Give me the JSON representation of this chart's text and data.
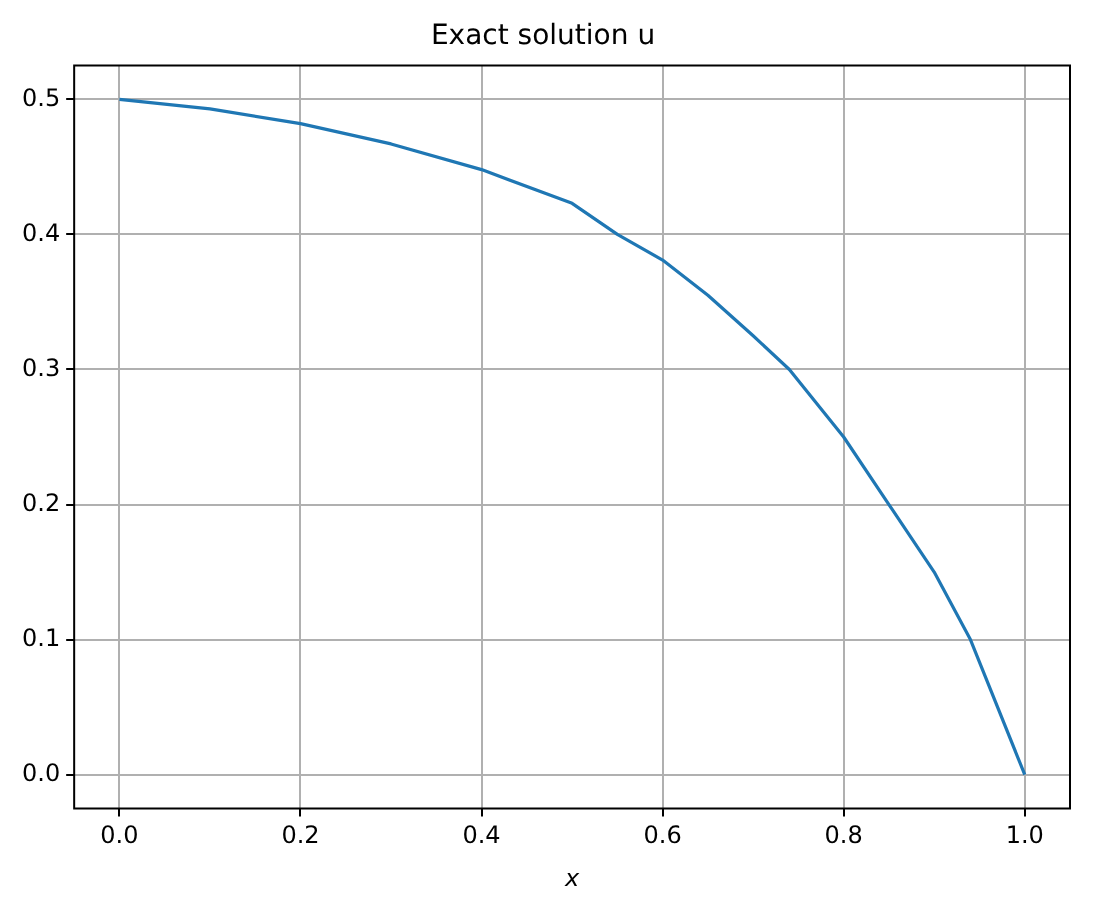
{
  "chart_data": {
    "type": "line",
    "title": "Exact solution u",
    "xlabel": "x",
    "x": [
      0,
      0.1,
      0.2,
      0.3,
      0.4,
      0.5,
      0.55,
      0.6,
      0.65,
      0.7,
      0.74,
      0.8,
      0.85,
      0.9,
      0.94,
      1.0
    ],
    "series": [
      {
        "color": "#1f77b4",
        "values": [
          0.5,
          0.493,
          0.482,
          0.467,
          0.448,
          0.423,
          0.4,
          0.381,
          0.355,
          0.325,
          0.3,
          0.25,
          0.2,
          0.15,
          0.1,
          0
        ]
      }
    ],
    "xlim": [
      -0.05,
      1.05
    ],
    "ylim": [
      -0.025,
      0.525
    ],
    "xticks": [
      {
        "value": 0,
        "label": "0.0"
      },
      0.2,
      0.4,
      0.6,
      0.8,
      {
        "value": 1,
        "label": "1.0"
      }
    ],
    "yticks": [
      {
        "value": 0,
        "label": "0.0"
      },
      0.1,
      0.2,
      0.3,
      0.4,
      0.5
    ],
    "grid": true,
    "legend": false,
    "marker": "none",
    "line_style": "solid"
  }
}
